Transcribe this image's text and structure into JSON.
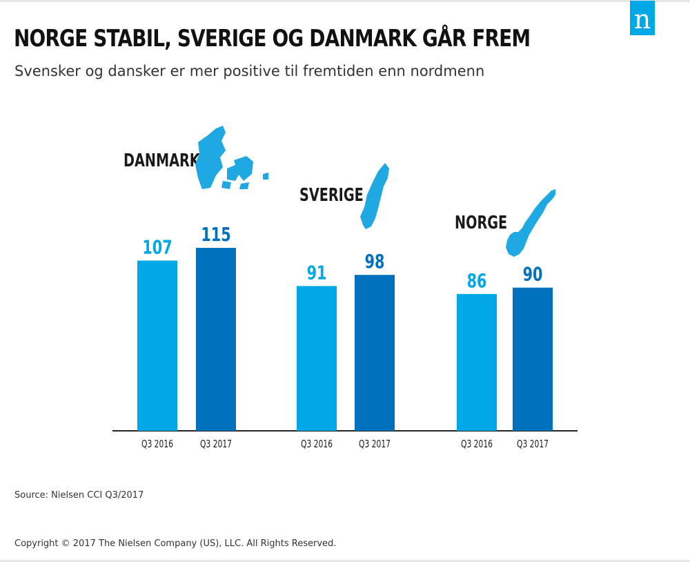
{
  "header": {
    "title": "NORGE STABIL, SVERIGE OG DANMARK GÅR FREM",
    "subtitle": "Svensker og dansker er mer positive til fremtiden enn nordmenn",
    "logo_letter": "n"
  },
  "colors": {
    "q3_2016": "#00a8e8",
    "q3_2017": "#0072bd",
    "map": "#1fa8e2",
    "axis": "#222222",
    "logo": "#00a8e8"
  },
  "chart_data": {
    "type": "bar",
    "title": "NORGE STABIL, SVERIGE OG DANMARK GÅR FREM",
    "subtitle": "Svensker og dansker er mer positive til fremtiden enn nordmenn",
    "xlabel": "",
    "ylabel": "",
    "ylim": [
      0,
      130
    ],
    "grid": false,
    "legend": "none",
    "groups": [
      {
        "label": "DANMARK",
        "icon": "denmark-map-icon",
        "bars": [
          {
            "category": "Q3 2016",
            "value": 107
          },
          {
            "category": "Q3 2017",
            "value": 115
          }
        ]
      },
      {
        "label": "SVERIGE",
        "icon": "sweden-map-icon",
        "bars": [
          {
            "category": "Q3 2016",
            "value": 91
          },
          {
            "category": "Q3 2017",
            "value": 98
          }
        ]
      },
      {
        "label": "NORGE",
        "icon": "norway-map-icon",
        "bars": [
          {
            "category": "Q3 2016",
            "value": 86
          },
          {
            "category": "Q3 2017",
            "value": 90
          }
        ]
      }
    ]
  },
  "footer": {
    "source": "Source: Nielsen CCI Q3/2017",
    "copyright": "Copyright © 2017 The Nielsen Company (US), LLC. All Rights Reserved."
  }
}
